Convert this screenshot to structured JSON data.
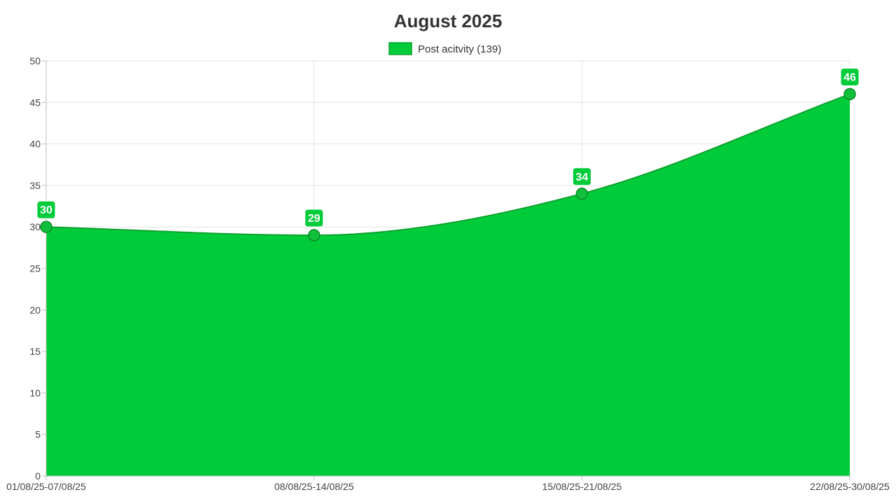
{
  "chart_data": {
    "type": "area",
    "title": "August 2025",
    "categories": [
      "01/08/25-07/08/25",
      "08/08/25-14/08/25",
      "15/08/25-21/08/25",
      "22/08/25-30/08/25"
    ],
    "series": [
      {
        "name": "Post acitvity (139)",
        "values": [
          30,
          29,
          34,
          46
        ]
      }
    ],
    "xlabel": "",
    "ylabel": "",
    "ylim": [
      0,
      50
    ],
    "yticks": [
      0,
      5,
      10,
      15,
      20,
      25,
      30,
      35,
      40,
      45,
      50
    ],
    "grid": true,
    "legend_position": "top-center",
    "data_labels": true,
    "colors": {
      "fill": "#00cc3a",
      "stroke": "#0fa02e",
      "point": "#10c03a"
    }
  }
}
